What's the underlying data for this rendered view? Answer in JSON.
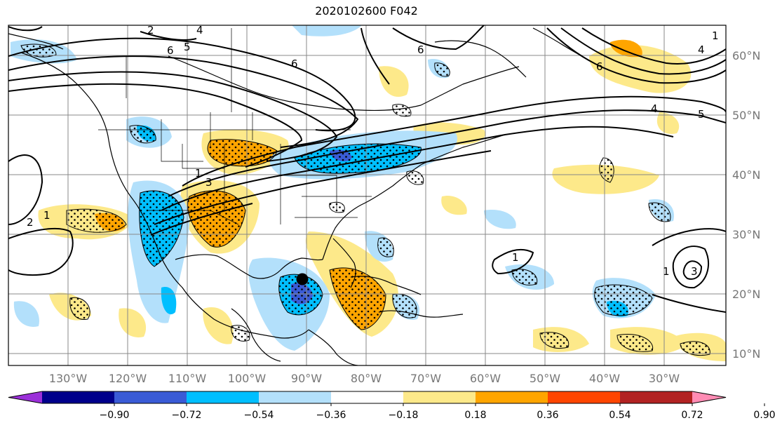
{
  "title": "2020102600 F042",
  "longitude_labels": [
    "130°W",
    "120°W",
    "110°W",
    "100°W",
    "90°W",
    "80°W",
    "70°W",
    "60°W",
    "50°W",
    "40°W",
    "30°W"
  ],
  "latitude_labels": [
    "60°N",
    "50°N",
    "40°N",
    "30°N",
    "20°N",
    "10°N"
  ],
  "contour_labels": [
    "6",
    "5",
    "4",
    "3",
    "2",
    "1",
    "6",
    "5",
    "4",
    "6",
    "3",
    "2",
    "1",
    "1",
    "2",
    "1",
    "1",
    "2",
    "3"
  ],
  "colorbar": {
    "ticks": [
      "−0.90",
      "−0.72",
      "−0.54",
      "−0.36",
      "−0.18",
      "0.18",
      "0.36",
      "0.54",
      "0.72",
      "0.90"
    ],
    "colors": [
      "#9b30d9",
      "#00008b",
      "#3a5bd6",
      "#00bfff",
      "#b3e0fb",
      "#ffffff",
      "#fde98a",
      "#ffa500",
      "#ff4500",
      "#b22222",
      "#ff8cb4"
    ]
  },
  "field_colors": {
    "land_lines": "#000000",
    "grid": "#888888",
    "positive_weak": "#fde98a",
    "positive_strong": "#ffa500",
    "negative_weak": "#b3e0fb",
    "negative_strong": "#00bfff",
    "negative_deep": "#3a5bd6"
  },
  "storm_marker": "black-dot"
}
